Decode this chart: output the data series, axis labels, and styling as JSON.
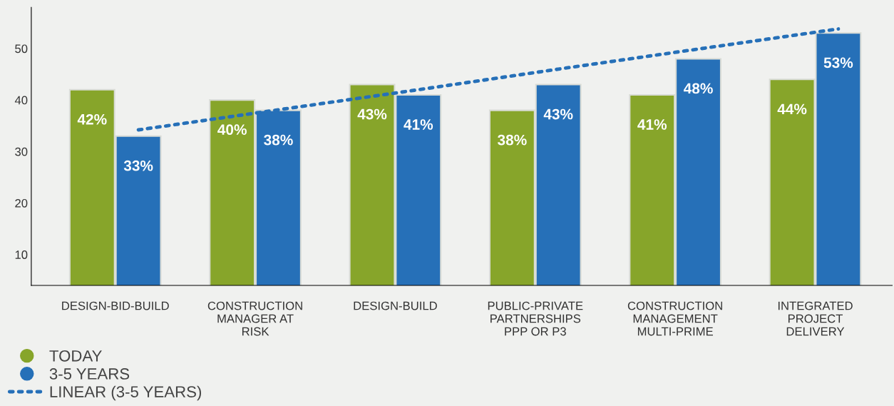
{
  "chart_data": {
    "type": "bar",
    "categories": [
      "DESIGN-BID-BUILD",
      "CONSTRUCTION\nMANAGER AT\nRISK",
      "DESIGN-BUILD",
      "PUBLIC-PRIVATE\nPARTNERSHIPS\nPPP OR P3",
      "CONSTRUCTION\nMANAGEMENT\nMULTI-PRIME",
      "INTEGRATED\nPROJECT\nDELIVERY"
    ],
    "series": [
      {
        "name": "TODAY",
        "color": "#87a52a",
        "values": [
          42,
          40,
          43,
          38,
          41,
          44
        ],
        "value_labels": [
          "42%",
          "40%",
          "43%",
          "38%",
          "41%",
          "44%"
        ]
      },
      {
        "name": "3-5 YEARS",
        "color": "#2670b8",
        "values": [
          33,
          38,
          41,
          43,
          48,
          53
        ],
        "value_labels": [
          "33%",
          "38%",
          "41%",
          "43%",
          "48%",
          "53%"
        ]
      },
      {
        "name": "LINEAR (3-5 YEARS)",
        "type": "line",
        "color": "#2670b8",
        "values": [
          34.2,
          38.1,
          42.0,
          46.0,
          49.9,
          53.8
        ],
        "line_style": "dotted",
        "marker": "none"
      }
    ],
    "ylim": [
      4,
      58
    ],
    "yticks": [
      10,
      20,
      30,
      40,
      50
    ],
    "grid": false,
    "legend": "bottom left"
  }
}
